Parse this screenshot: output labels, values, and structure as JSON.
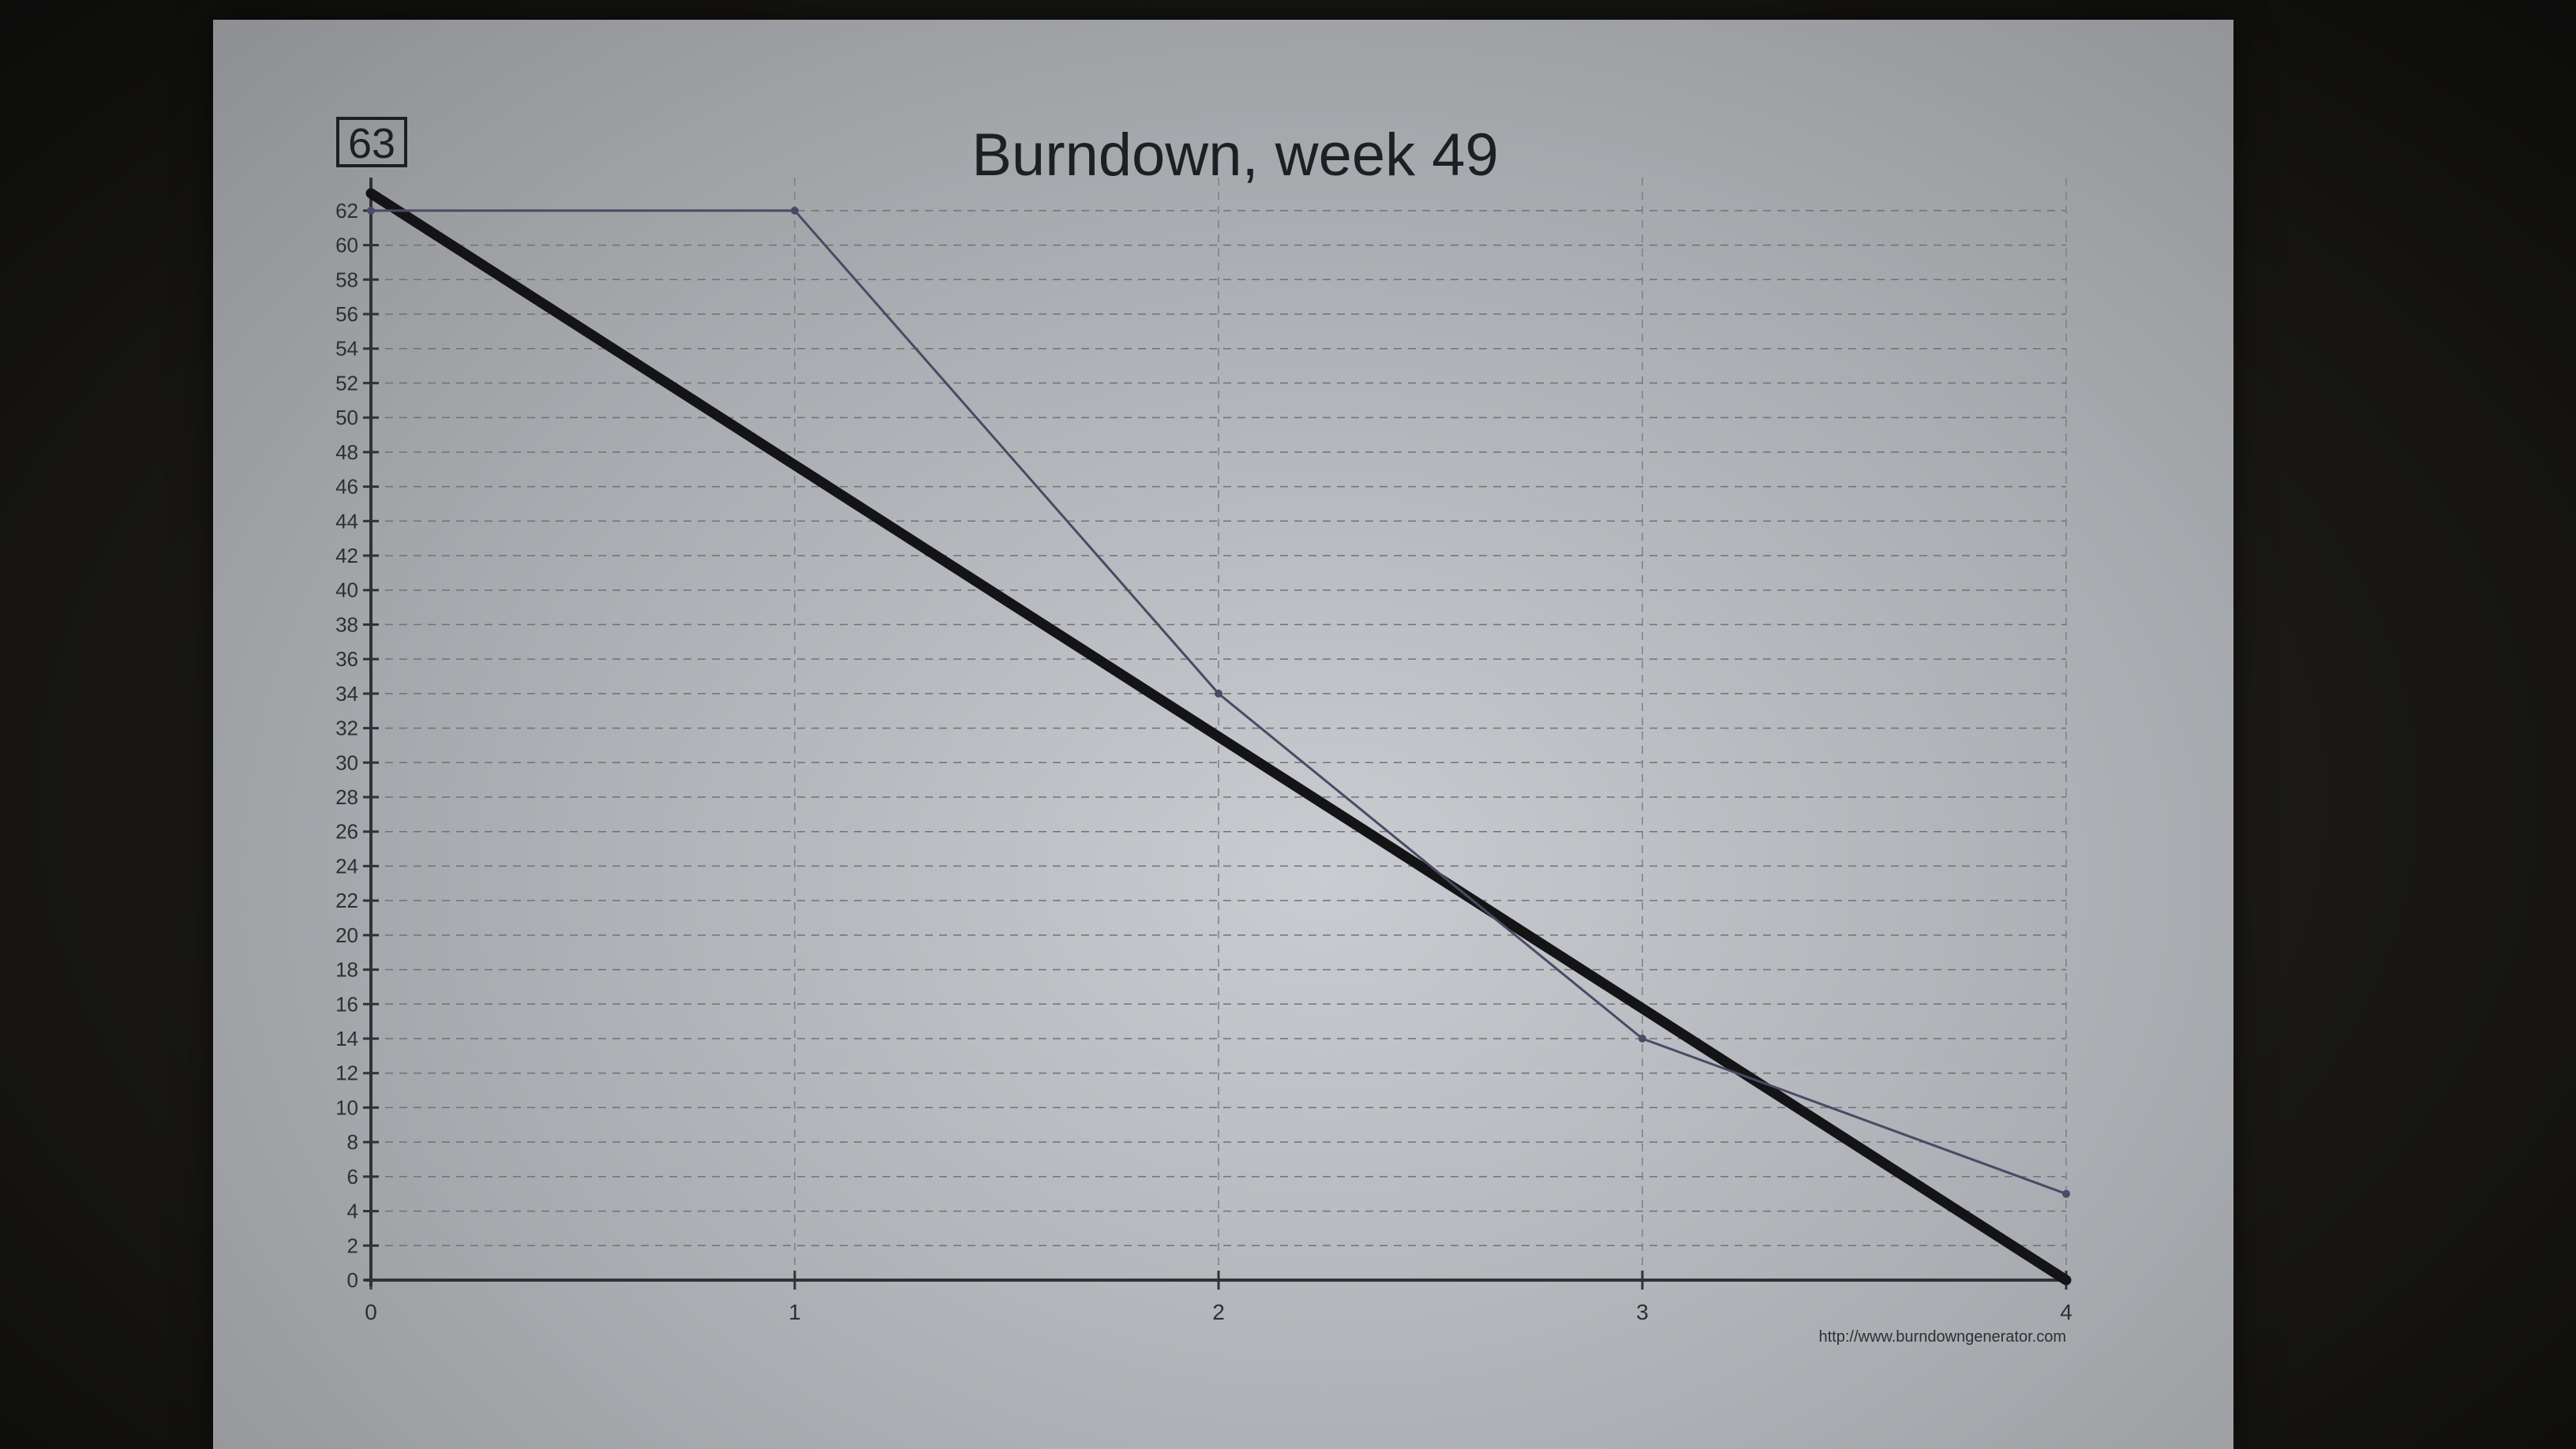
{
  "chart_data": {
    "type": "line",
    "title": "Burndown, week 49",
    "badge": "63",
    "credit": "http://www.burndowngenerator.com",
    "xlabel": "",
    "ylabel": "",
    "xlim": [
      0,
      4
    ],
    "ylim": [
      0,
      63
    ],
    "x_ticks": [
      0,
      1,
      2,
      3,
      4
    ],
    "y_ticks": [
      0,
      2,
      4,
      6,
      8,
      10,
      12,
      14,
      16,
      18,
      20,
      22,
      24,
      26,
      28,
      30,
      32,
      34,
      36,
      38,
      40,
      42,
      44,
      46,
      48,
      50,
      52,
      54,
      56,
      58,
      60,
      62
    ],
    "grid": true,
    "series": [
      {
        "style": "ideal",
        "color": "#141416",
        "points": [
          [
            0,
            63
          ],
          [
            4,
            0
          ]
        ]
      },
      {
        "style": "actual",
        "color": "#4a4a66",
        "points": [
          [
            0,
            62
          ],
          [
            1,
            62
          ],
          [
            2,
            34
          ],
          [
            3,
            14
          ],
          [
            4,
            5
          ]
        ]
      }
    ]
  }
}
